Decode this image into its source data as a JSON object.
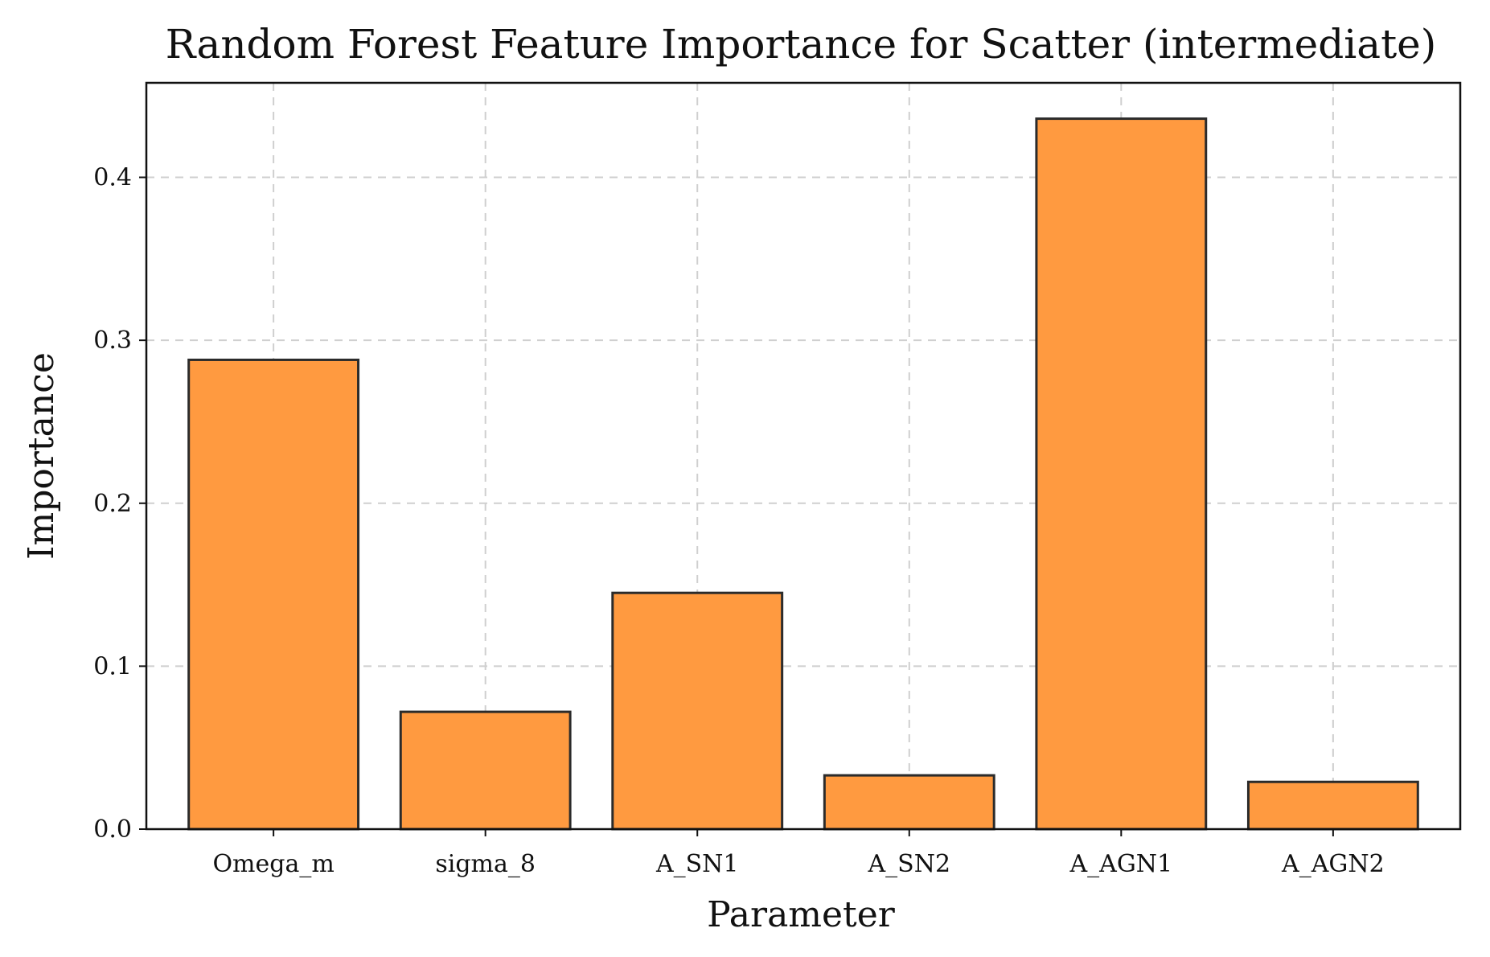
{
  "chart_data": {
    "type": "bar",
    "title": "Random Forest Feature Importance for Scatter (intermediate)",
    "xlabel": "Parameter",
    "ylabel": "Importance",
    "categories": [
      "Omega_m",
      "sigma_8",
      "A_SN1",
      "A_SN2",
      "A_AGN1",
      "A_AGN2"
    ],
    "values": [
      0.288,
      0.072,
      0.145,
      0.033,
      0.436,
      0.029
    ],
    "ylim": [
      0,
      0.458
    ],
    "yticks": [
      0.0,
      0.1,
      0.2,
      0.3,
      0.4
    ],
    "ytick_labels": [
      "0.0",
      "0.1",
      "0.2",
      "0.3",
      "0.4"
    ],
    "grid": true,
    "bar_color": "#ff9a40",
    "edge_color": "#2b2b2b"
  }
}
